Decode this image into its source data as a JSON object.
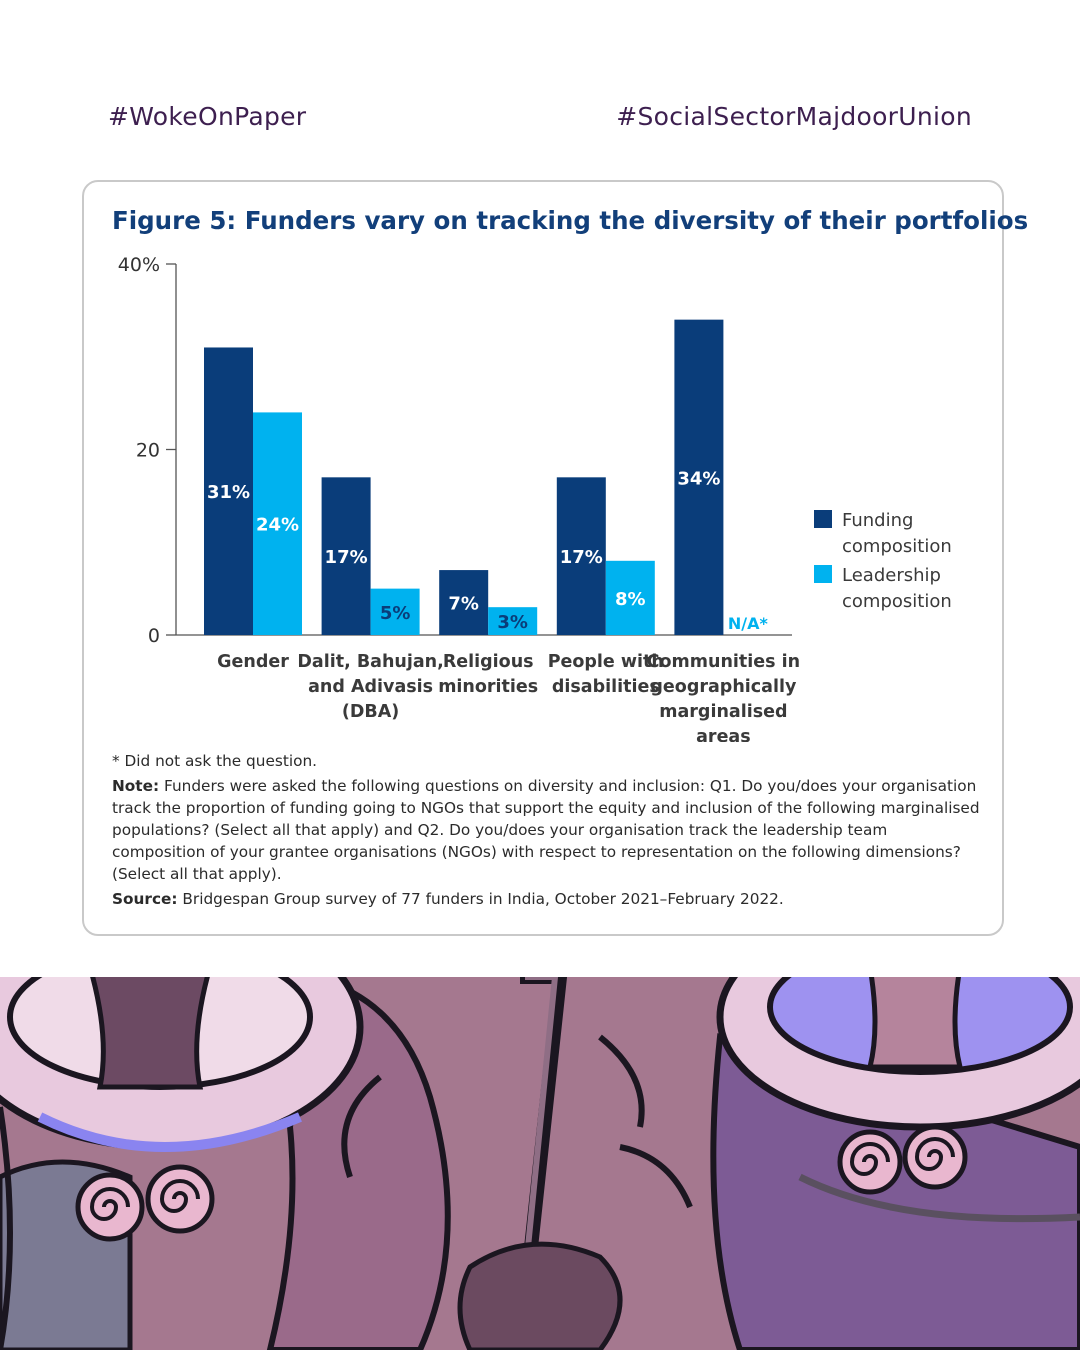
{
  "header": {
    "left_hashtag": "#WokeOnPaper",
    "right_hashtag": "#SocialSectorMajdoorUnion"
  },
  "figure": {
    "title": "Figure 5: Funders vary on tracking the diversity of their portfolios",
    "footnote": "* Did not ask the question.",
    "note_label": "Note:",
    "note_text": "Funders were asked the following questions on diversity and inclusion: Q1. Do you/does your organisation track the proportion of funding going to NGOs that support the equity and inclusion of the following marginalised populations? (Select all that apply) and Q2. Do you/does your organisation track the leadership team composition of your grantee organisations (NGOs) with respect to representation on the following dimensions? (Select all that apply).",
    "source_label": "Source:",
    "source_text": "Bridgespan Group survey of 77 funders in India, October 2021–February 2022."
  },
  "colors": {
    "funding": "#0a3d7a",
    "leadership": "#00b2ef",
    "title": "#123f7a"
  },
  "chart_data": {
    "type": "bar",
    "title": "Figure 5: Funders vary on tracking the diversity of their portfolios",
    "categories": [
      [
        "Gender"
      ],
      [
        "Dalit, Bahujan,",
        "and Adivasis",
        "(DBA)"
      ],
      [
        "Religious",
        "minorities"
      ],
      [
        "People with",
        "disabilities"
      ],
      [
        "Communities in",
        "geographically",
        "marginalised",
        "areas"
      ]
    ],
    "series": [
      {
        "name": "Funding composition",
        "legend_lines": [
          "Funding",
          "composition"
        ],
        "values": [
          31,
          17,
          7,
          17,
          34
        ],
        "labels": [
          "31%",
          "17%",
          "7%",
          "17%",
          "34%"
        ]
      },
      {
        "name": "Leadership composition",
        "legend_lines": [
          "Leadership",
          "composition"
        ],
        "values": [
          24,
          5,
          3,
          8,
          null
        ],
        "labels": [
          "24%",
          "5%",
          "3%",
          "8%",
          "N/A*"
        ]
      }
    ],
    "y_ticks": [
      "0",
      "20",
      "40%"
    ],
    "ylim": [
      0,
      40
    ],
    "grid": false,
    "legend_position": "right"
  }
}
